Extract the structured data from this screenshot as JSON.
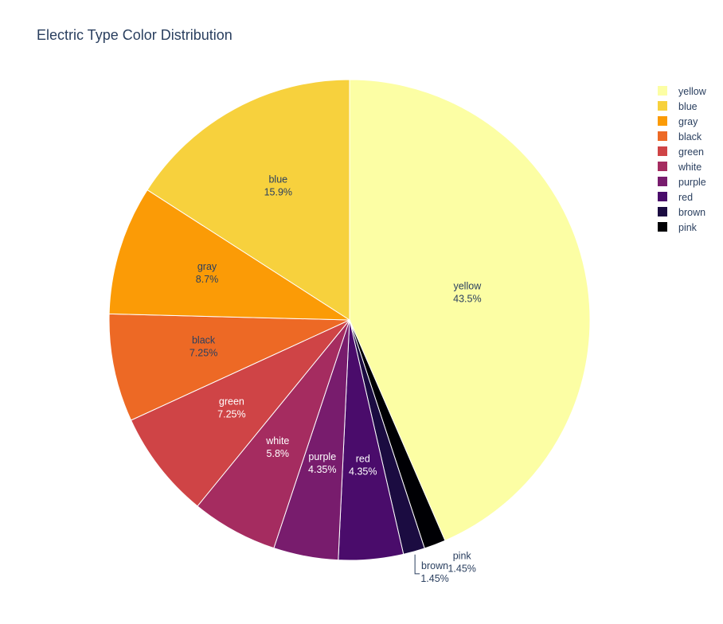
{
  "chart_data": {
    "type": "pie",
    "title": "Electric Type Color Distribution",
    "slices": [
      {
        "label": "yellow",
        "value": 43.5,
        "percent_text": "43.5%",
        "color": "#fcfea4"
      },
      {
        "label": "pink",
        "value": 1.45,
        "percent_text": "1.45%",
        "color": "#000004"
      },
      {
        "label": "brown",
        "value": 1.45,
        "percent_text": "1.45%",
        "color": "#1b0c41"
      },
      {
        "label": "red",
        "value": 4.35,
        "percent_text": "4.35%",
        "color": "#4a0c6b"
      },
      {
        "label": "purple",
        "value": 4.35,
        "percent_text": "4.35%",
        "color": "#781c6d"
      },
      {
        "label": "white",
        "value": 5.8,
        "percent_text": "5.8%",
        "color": "#a52c60"
      },
      {
        "label": "green",
        "value": 7.25,
        "percent_text": "7.25%",
        "color": "#cf4446"
      },
      {
        "label": "black",
        "value": 7.25,
        "percent_text": "7.25%",
        "color": "#ed6925"
      },
      {
        "label": "gray",
        "value": 8.7,
        "percent_text": "8.7%",
        "color": "#fb9b06"
      },
      {
        "label": "blue",
        "value": 15.9,
        "percent_text": "15.9%",
        "color": "#f7d13d"
      }
    ],
    "legend_order": [
      "yellow",
      "blue",
      "gray",
      "black",
      "green",
      "white",
      "purple",
      "red",
      "brown",
      "pink"
    ],
    "legend_position": "top-right"
  }
}
